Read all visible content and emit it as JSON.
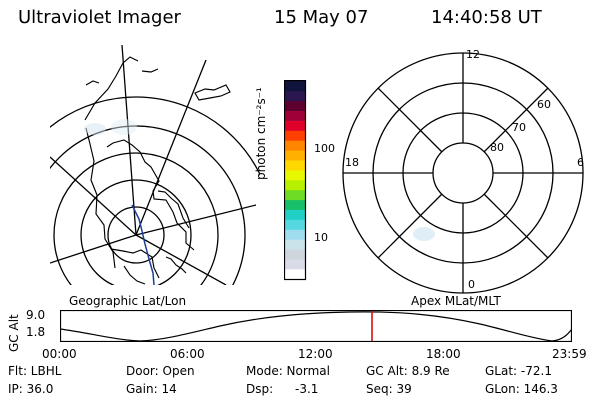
{
  "header": {
    "title": "Ultraviolet Imager",
    "date": "15 May 07",
    "time": "14:40:58 UT"
  },
  "colorbar": {
    "label": "photon cm⁻²s⁻¹",
    "tick_high": "100",
    "tick_low": "10",
    "colors": [
      "#ffffff",
      "#d9dbe8",
      "#cfd5dd",
      "#c8e3ea",
      "#9fdcef",
      "#55d8e0",
      "#20cfc6",
      "#18c06a",
      "#6edc24",
      "#b8f000",
      "#e7f800",
      "#ffd800",
      "#ffb000",
      "#ff8500",
      "#ff3f00",
      "#e1002a",
      "#9f0038",
      "#5d002f",
      "#2c1650",
      "#10143d"
    ]
  },
  "left_map": {
    "label": "Geographic Lat/Lon"
  },
  "right_map": {
    "label": "Apex MLat/MLT",
    "mlt": [
      "12",
      "18",
      "6",
      "0"
    ],
    "mlat": [
      "60",
      "70",
      "80"
    ]
  },
  "timeline": {
    "axis_label": "GC Alt",
    "y_ticks": [
      "9.0",
      "1.8"
    ],
    "times": [
      "00:00",
      "06:00",
      "12:00",
      "18:00",
      "23:59"
    ],
    "marker_color": "#d40000"
  },
  "footer": {
    "flt": "Flt: LBHL",
    "ip": "IP: 36.0",
    "door": "Door: Open",
    "gain": "Gain: 14",
    "mode": "Mode: Normal",
    "dsp_label": "Dsp:",
    "dsp_value": "-3.1",
    "gc_alt": "GC Alt: 8.9 Re",
    "seq": "Seq: 39",
    "glat": "GLat: -72.1",
    "glon": "GLon: 146.3"
  }
}
